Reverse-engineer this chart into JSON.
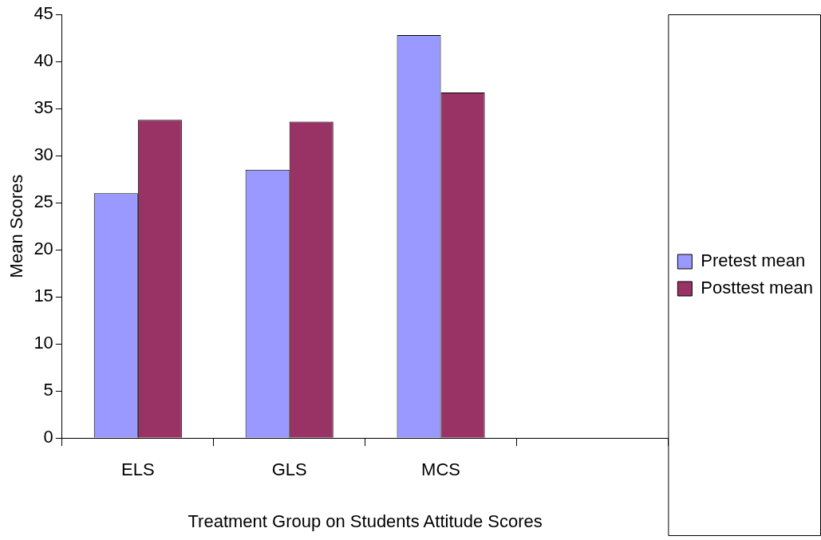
{
  "chart_data": {
    "type": "bar",
    "xlabel": "Treatment Group on Students Attitude Scores",
    "ylabel": "Mean Scores",
    "categories": [
      "ELS",
      "GLS",
      "MCS",
      null
    ],
    "series": [
      {
        "name": "Pretest mean",
        "color": "#9999ff",
        "values": [
          26,
          28.5,
          42.8,
          null
        ]
      },
      {
        "name": "Posttest mean",
        "color": "#993366",
        "values": [
          33.8,
          33.6,
          36.7,
          null
        ]
      }
    ],
    "ylim": [
      0,
      45
    ],
    "yticks": [
      0,
      5,
      10,
      15,
      20,
      25,
      30,
      35,
      40,
      45
    ],
    "grid": false,
    "legend": "right"
  }
}
